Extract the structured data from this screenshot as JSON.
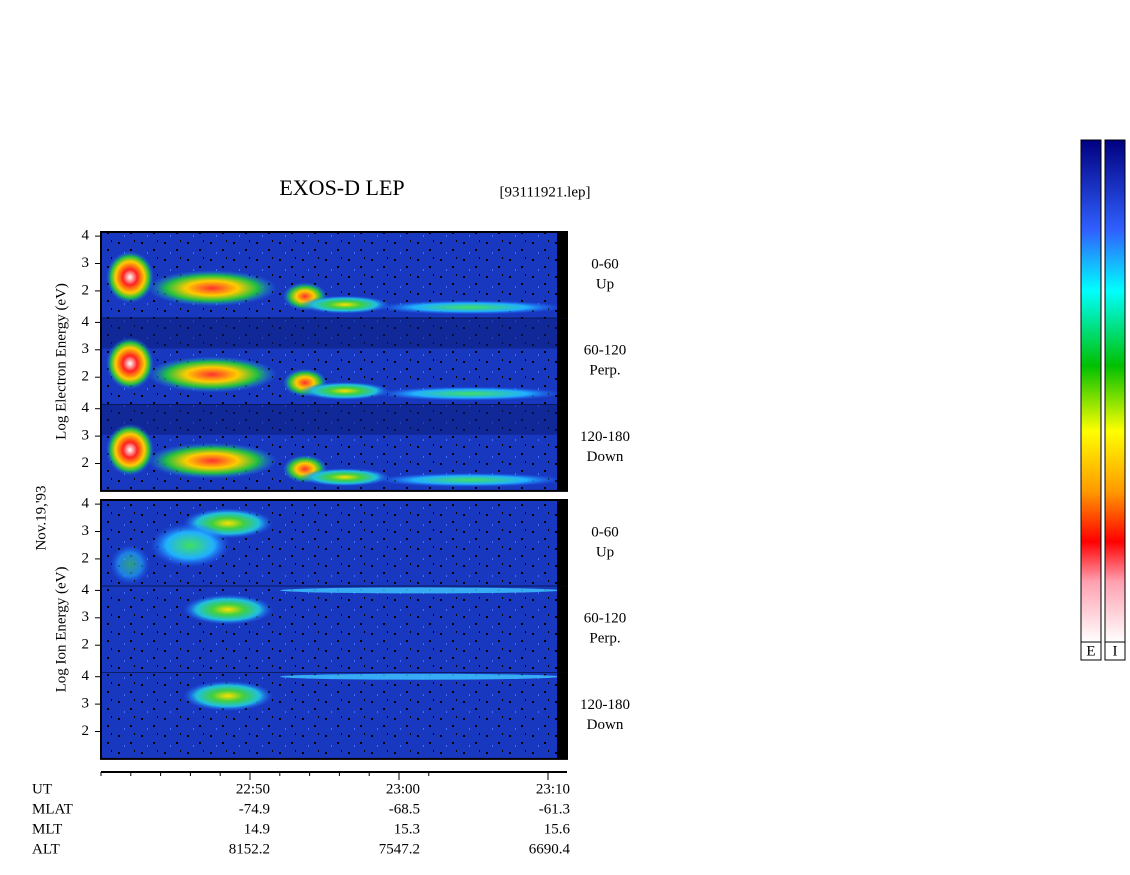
{
  "title": "EXOS-D LEP",
  "file": "[93111921.lep]",
  "date": "Nov.19,'93",
  "groups": [
    {
      "ylabel": "Log Electron Energy (eV)",
      "ylim": [
        1,
        4.15
      ],
      "yticks": [
        2,
        3,
        4
      ],
      "channels": [
        {
          "angle": "0-60",
          "dir": "Up"
        },
        {
          "angle": "60-120",
          "dir": "Perp."
        },
        {
          "angle": "120-180",
          "dir": "Down"
        }
      ]
    },
    {
      "ylabel": "Log Ion Energy (eV)",
      "ylim": [
        1,
        4.15
      ],
      "yticks": [
        2,
        3,
        4
      ],
      "channels": [
        {
          "angle": "0-60",
          "dir": "Up"
        },
        {
          "angle": "60-120",
          "dir": "Perp."
        },
        {
          "angle": "120-180",
          "dir": "Down"
        }
      ]
    }
  ],
  "xticks": [
    "22:50",
    "23:00",
    "23:10"
  ],
  "footer": [
    {
      "label": "UT",
      "values": [
        "22:50",
        "23:00",
        "23:10"
      ]
    },
    {
      "label": "MLAT",
      "values": [
        "-74.9",
        "-68.5",
        "-61.3"
      ]
    },
    {
      "label": "MLT",
      "values": [
        "14.9",
        "15.3",
        "15.6"
      ]
    },
    {
      "label": "ALT",
      "values": [
        "8152.2",
        "7547.2",
        "6690.4"
      ]
    }
  ],
  "colorbars": [
    "E",
    "I"
  ]
}
